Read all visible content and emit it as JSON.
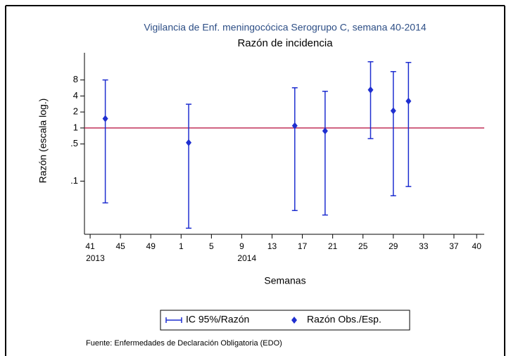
{
  "chart_data": {
    "type": "errorbar",
    "title": "Vigilancia de Enf. meningocócica Serogrupo C, semana 40-2014",
    "subtitle": "Razón de incidencia",
    "x_label": "Semanas",
    "y_label": "Razón (escala log.)",
    "y_scale": "log",
    "xlim": [
      -0.75,
      52
    ],
    "xticks": [
      {
        "value": 0,
        "label": "41"
      },
      {
        "value": 4,
        "label": "45"
      },
      {
        "value": 8,
        "label": "49"
      },
      {
        "value": 12,
        "label": "1"
      },
      {
        "value": 16,
        "label": "5"
      },
      {
        "value": 20,
        "label": "9"
      },
      {
        "value": 24,
        "label": "13"
      },
      {
        "value": 28,
        "label": "17"
      },
      {
        "value": 32,
        "label": "21"
      },
      {
        "value": 36,
        "label": "25"
      },
      {
        "value": 40,
        "label": "29"
      },
      {
        "value": 44,
        "label": "33"
      },
      {
        "value": 48,
        "label": "37"
      },
      {
        "value": 51,
        "label": "40"
      }
    ],
    "year_labels": [
      {
        "x": 0,
        "text": "2013"
      },
      {
        "x": 20,
        "text": "2014"
      }
    ],
    "ylim": [
      0.01,
      26
    ],
    "yticks": [
      8,
      4,
      2,
      1,
      {
        "value": 0.5,
        "label": ".5"
      },
      {
        "value": 0.1,
        "label": ".1"
      }
    ],
    "reference_line": {
      "value": 1,
      "color": "#c0305a"
    },
    "series": [
      {
        "name": "Razón Obs./Esp.",
        "ci_name": "IC 95%/Razón",
        "color": "#1f2fd0",
        "x": [
          2,
          13,
          27,
          31,
          37,
          40,
          42
        ],
        "values": [
          1.5,
          0.53,
          1.1,
          0.88,
          5.2,
          2.1,
          3.2
        ],
        "lower": [
          0.039,
          0.013,
          0.028,
          0.023,
          0.63,
          0.053,
          0.079
        ],
        "upper": [
          8,
          2.8,
          5.7,
          4.9,
          17.6,
          11.5,
          17.1
        ]
      }
    ],
    "source": "Fuente: Enfermedades de Declaración Obligatoria (EDO)"
  }
}
